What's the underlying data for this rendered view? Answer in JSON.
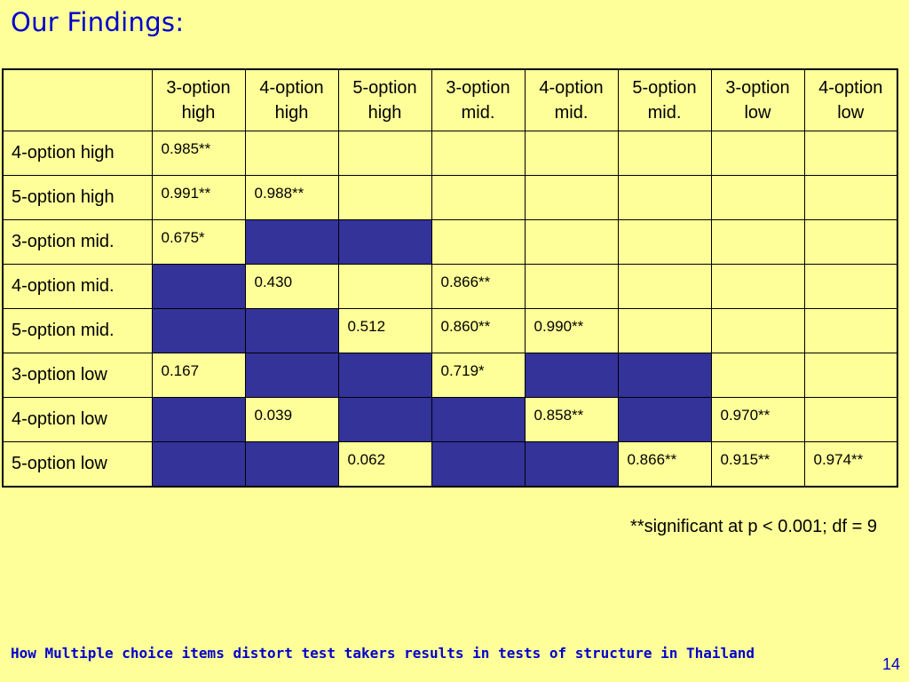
{
  "title": "Our Findings:",
  "table": {
    "columns": [
      [
        "3-option",
        "high"
      ],
      [
        "4-option",
        "high"
      ],
      [
        "5-option",
        "high"
      ],
      [
        "3-option",
        "mid."
      ],
      [
        "4-option",
        "mid."
      ],
      [
        "5-option",
        "mid."
      ],
      [
        "3-option",
        "low"
      ],
      [
        "4-option",
        "low"
      ]
    ],
    "rows": [
      {
        "label": "4-option high",
        "cells": [
          "0.985**",
          "",
          "",
          "",
          "",
          "",
          "",
          ""
        ]
      },
      {
        "label": "5-option high",
        "cells": [
          "0.991**",
          "0.988**",
          "",
          "",
          "",
          "",
          "",
          ""
        ]
      },
      {
        "label": "3-option mid.",
        "cells": [
          "0.675*",
          null,
          null,
          "",
          "",
          "",
          "",
          ""
        ]
      },
      {
        "label": "4-option mid.",
        "cells": [
          null,
          "0.430",
          "",
          "0.866**",
          "",
          "",
          "",
          ""
        ]
      },
      {
        "label": "5-option mid.",
        "cells": [
          null,
          null,
          "0.512",
          "0.860**",
          "0.990**",
          "",
          "",
          ""
        ]
      },
      {
        "label": "3-option low",
        "cells": [
          "0.167",
          null,
          null,
          "0.719*",
          null,
          null,
          "",
          ""
        ]
      },
      {
        "label": "4-option low",
        "cells": [
          null,
          "0.039",
          null,
          null,
          "0.858**",
          null,
          "0.970**",
          ""
        ]
      },
      {
        "label": "5-option low",
        "cells": [
          null,
          null,
          "0.062",
          null,
          null,
          "0.866**",
          "0.915**",
          "0.974**"
        ]
      }
    ]
  },
  "colors": {
    "background": "#ffff99",
    "shaded_cell": "#333399",
    "title_text": "#0000cc"
  },
  "footnote": "**significant at p < 0.001; df = 9",
  "footer_text": "How Multiple choice items distort test takers results in tests of structure in Thailand",
  "page_number": "14"
}
